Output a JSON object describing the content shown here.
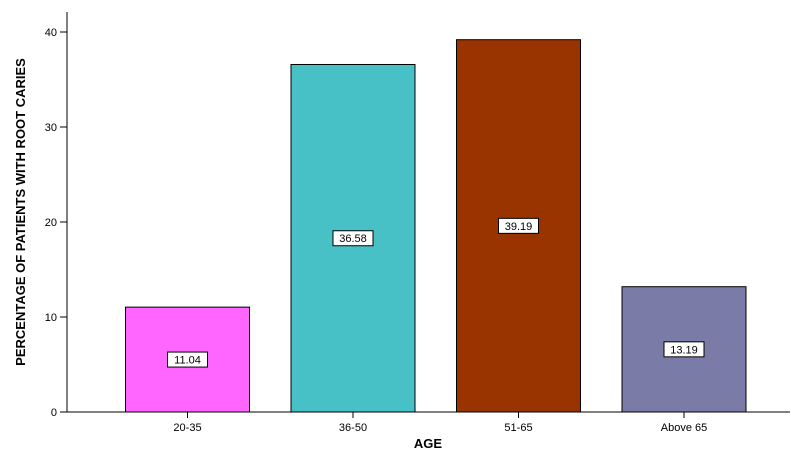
{
  "chart_data": {
    "type": "bar",
    "title": "",
    "xlabel": "AGE",
    "ylabel": "PERCENTAGE OF PATIENTS WITH ROOT CARIES",
    "categories": [
      "20-35",
      "36-50",
      "51-65",
      "Above 65"
    ],
    "values": [
      11.04,
      36.58,
      39.19,
      13.19
    ],
    "data_labels": [
      "11.04",
      "36.58",
      "39.19",
      "13.19"
    ],
    "colors": [
      "#ff66ff",
      "#47c1c6",
      "#993300",
      "#7b7ba8"
    ],
    "ylim": [
      0,
      40
    ],
    "yticks": [
      0,
      10,
      20,
      30,
      40
    ],
    "grid": false,
    "legend": "none"
  }
}
